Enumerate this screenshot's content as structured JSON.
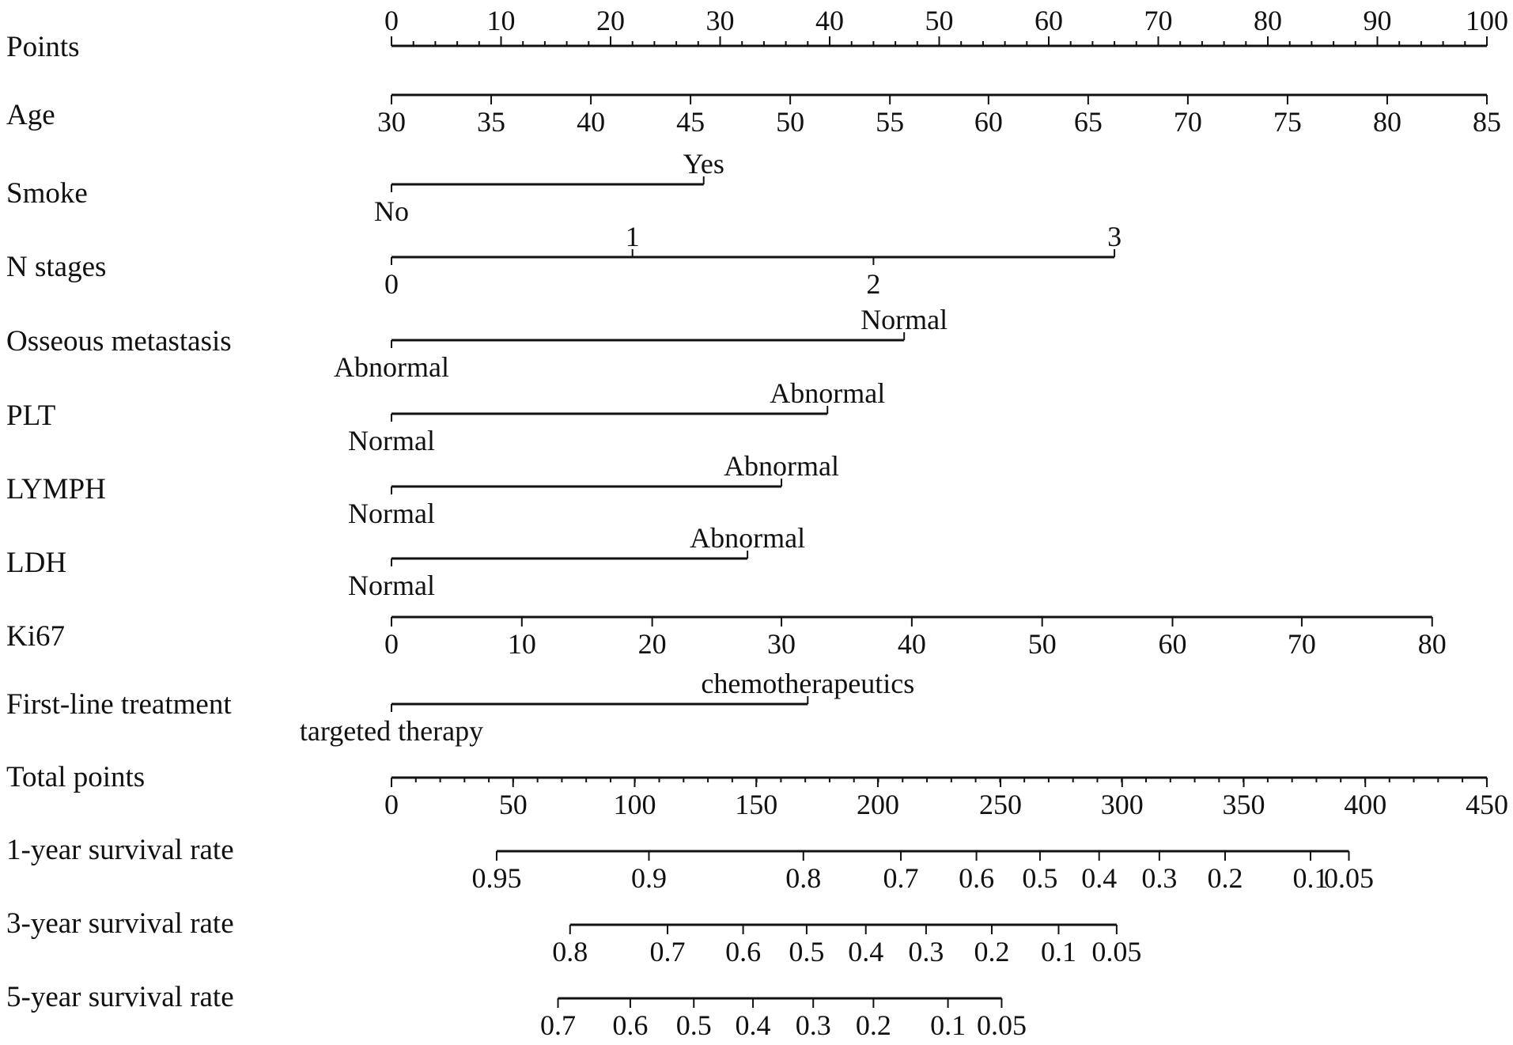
{
  "chart_data": {
    "type": "nomogram",
    "rows": [
      {
        "label": "Points",
        "kind": "scale",
        "ticks": [
          {
            "text": "0",
            "points": 0
          },
          {
            "text": "10",
            "points": 10
          },
          {
            "text": "20",
            "points": 20
          },
          {
            "text": "30",
            "points": 30
          },
          {
            "text": "40",
            "points": 40
          },
          {
            "text": "50",
            "points": 50
          },
          {
            "text": "60",
            "points": 60
          },
          {
            "text": "70",
            "points": 70
          },
          {
            "text": "80",
            "points": 80
          },
          {
            "text": "90",
            "points": 90
          },
          {
            "text": "100",
            "points": 100
          }
        ],
        "minor_step": 2
      },
      {
        "label": "Age",
        "kind": "scale",
        "ticks": [
          {
            "text": "30",
            "points": 0
          },
          {
            "text": "35",
            "points": 9.1
          },
          {
            "text": "40",
            "points": 18.2
          },
          {
            "text": "45",
            "points": 27.3
          },
          {
            "text": "50",
            "points": 36.4
          },
          {
            "text": "55",
            "points": 45.5
          },
          {
            "text": "60",
            "points": 54.5
          },
          {
            "text": "65",
            "points": 63.6
          },
          {
            "text": "70",
            "points": 72.7
          },
          {
            "text": "75",
            "points": 81.8
          },
          {
            "text": "80",
            "points": 90.9
          },
          {
            "text": "85",
            "points": 100
          }
        ]
      },
      {
        "label": "Smoke",
        "kind": "categorical",
        "levels": [
          {
            "text": "No",
            "points": 0,
            "side": "below"
          },
          {
            "text": "Yes",
            "points": 28.5,
            "side": "above"
          }
        ]
      },
      {
        "label": "N stages",
        "kind": "categorical",
        "levels": [
          {
            "text": "0",
            "points": 0,
            "side": "below"
          },
          {
            "text": "1",
            "points": 22,
            "side": "above"
          },
          {
            "text": "2",
            "points": 44,
            "side": "below"
          },
          {
            "text": "3",
            "points": 66,
            "side": "above"
          }
        ]
      },
      {
        "label": "Osseous metastasis",
        "kind": "categorical",
        "levels": [
          {
            "text": "Abnormal",
            "points": 0,
            "side": "below"
          },
          {
            "text": "Normal",
            "points": 46.8,
            "side": "above"
          }
        ]
      },
      {
        "label": "PLT",
        "kind": "categorical",
        "levels": [
          {
            "text": "Normal",
            "points": 0,
            "side": "below"
          },
          {
            "text": "Abnormal",
            "points": 39.8,
            "side": "above"
          }
        ]
      },
      {
        "label": "LYMPH",
        "kind": "categorical",
        "levels": [
          {
            "text": "Normal",
            "points": 0,
            "side": "below"
          },
          {
            "text": "Abnormal",
            "points": 35.6,
            "side": "above"
          }
        ]
      },
      {
        "label": "LDH",
        "kind": "categorical",
        "levels": [
          {
            "text": "Normal",
            "points": 0,
            "side": "below"
          },
          {
            "text": "Abnormal",
            "points": 32.5,
            "side": "above"
          }
        ]
      },
      {
        "label": "Ki67",
        "kind": "scale",
        "ticks": [
          {
            "text": "0",
            "points": 0
          },
          {
            "text": "10",
            "points": 11.9
          },
          {
            "text": "20",
            "points": 23.8
          },
          {
            "text": "30",
            "points": 35.6
          },
          {
            "text": "40",
            "points": 47.5
          },
          {
            "text": "50",
            "points": 59.4
          },
          {
            "text": "60",
            "points": 71.3
          },
          {
            "text": "70",
            "points": 83.1
          },
          {
            "text": "80",
            "points": 95
          }
        ]
      },
      {
        "label": "First-line treatment",
        "kind": "categorical",
        "levels": [
          {
            "text": "targeted therapy",
            "points": 0,
            "side": "below"
          },
          {
            "text": "chemotherapeutics",
            "points": 38,
            "side": "above"
          }
        ]
      },
      {
        "label": "Total points",
        "kind": "scale",
        "ticks": [
          {
            "text": "0",
            "points": 0
          },
          {
            "text": "50",
            "points": 11.1
          },
          {
            "text": "100",
            "points": 22.2
          },
          {
            "text": "150",
            "points": 33.3
          },
          {
            "text": "200",
            "points": 44.4
          },
          {
            "text": "250",
            "points": 55.6
          },
          {
            "text": "300",
            "points": 66.7
          },
          {
            "text": "350",
            "points": 77.8
          },
          {
            "text": "400",
            "points": 88.9
          },
          {
            "text": "450",
            "points": 100
          }
        ],
        "minor_step": 2.222
      },
      {
        "label": "1-year survival rate",
        "kind": "scale",
        "ticks": [
          {
            "text": "0.95",
            "points": 9.6
          },
          {
            "text": "0.9",
            "points": 23.5
          },
          {
            "text": "0.8",
            "points": 37.6
          },
          {
            "text": "0.7",
            "points": 46.5
          },
          {
            "text": "0.6",
            "points": 53.4
          },
          {
            "text": "0.5",
            "points": 59.2
          },
          {
            "text": "0.4",
            "points": 64.6
          },
          {
            "text": "0.3",
            "points": 70.1
          },
          {
            "text": "0.2",
            "points": 76.1
          },
          {
            "text": "0.1",
            "points": 83.9
          },
          {
            "text": "0.05",
            "points": 87.4
          }
        ]
      },
      {
        "label": "3-year survival rate",
        "kind": "scale",
        "ticks": [
          {
            "text": "0.8",
            "points": 16.3
          },
          {
            "text": "0.7",
            "points": 25.2
          },
          {
            "text": "0.6",
            "points": 32.1
          },
          {
            "text": "0.5",
            "points": 37.9
          },
          {
            "text": "0.4",
            "points": 43.3
          },
          {
            "text": "0.3",
            "points": 48.8
          },
          {
            "text": "0.2",
            "points": 54.8
          },
          {
            "text": "0.1",
            "points": 60.9
          },
          {
            "text": "0.05",
            "points": 66.2
          }
        ]
      },
      {
        "label": "5-year survival rate",
        "kind": "scale",
        "ticks": [
          {
            "text": "0.7",
            "points": 15.2
          },
          {
            "text": "0.6",
            "points": 21.8
          },
          {
            "text": "0.5",
            "points": 27.6
          },
          {
            "text": "0.4",
            "points": 33.0
          },
          {
            "text": "0.3",
            "points": 38.5
          },
          {
            "text": "0.2",
            "points": 44.0
          },
          {
            "text": "0.1",
            "points": 50.8
          },
          {
            "text": "0.05",
            "points": 55.7
          }
        ]
      }
    ]
  }
}
